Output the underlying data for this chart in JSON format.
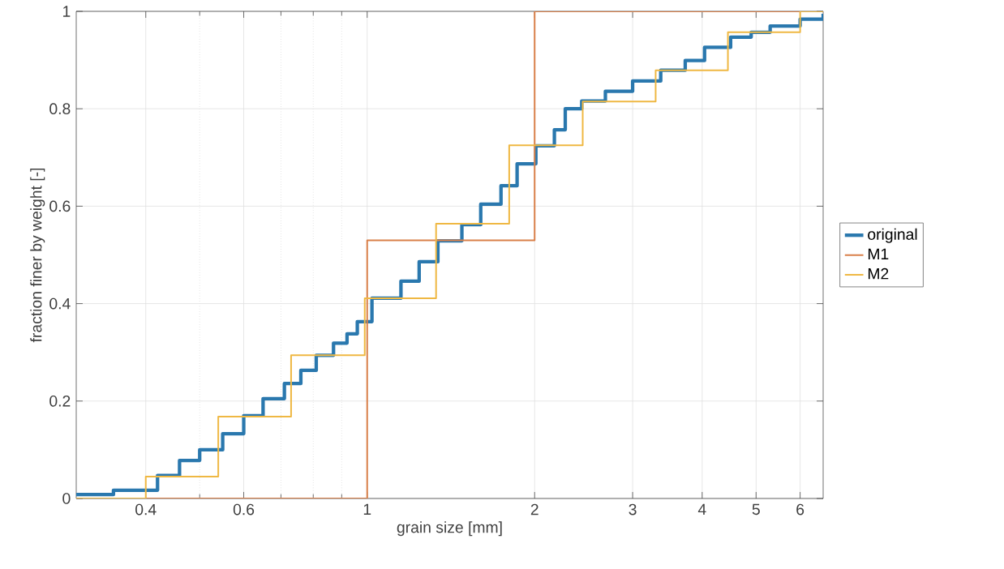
{
  "chart_data": {
    "type": "step",
    "xlabel": "grain size [mm]",
    "ylabel": "fraction finer by weight [-]",
    "log": "x",
    "grid": true,
    "legend": "right",
    "xlim": [
      0.3,
      6.6
    ],
    "ylim": [
      0,
      1
    ],
    "xticks": [
      0.4,
      {
        "value": 0.5,
        "label": null
      },
      0.6,
      {
        "value": 0.7,
        "label": null
      },
      {
        "value": 0.8,
        "label": null
      },
      {
        "value": 0.9,
        "label": null
      },
      1,
      2,
      3,
      4,
      5,
      6
    ],
    "yticks": [
      0,
      0.2,
      0.4,
      0.6,
      0.8,
      1
    ],
    "series": [
      {
        "name": "original",
        "color": "#2a78ae",
        "x": [
          0.3,
          0.35,
          0.42,
          0.46,
          0.5,
          0.55,
          0.6,
          0.65,
          0.71,
          0.76,
          0.81,
          0.87,
          0.92,
          0.96,
          1.02,
          1.15,
          1.24,
          1.34,
          1.48,
          1.6,
          1.74,
          1.86,
          2.01,
          2.17,
          2.27,
          2.43,
          2.68,
          3.0,
          3.37,
          3.73,
          4.04,
          4.5,
          4.9,
          5.3,
          6.0,
          6.6
        ],
        "values": [
          0.008,
          0.017,
          0.047,
          0.078,
          0.1,
          0.133,
          0.17,
          0.205,
          0.236,
          0.263,
          0.294,
          0.319,
          0.338,
          0.363,
          0.411,
          0.446,
          0.486,
          0.529,
          0.562,
          0.604,
          0.642,
          0.687,
          0.724,
          0.757,
          0.8,
          0.816,
          0.836,
          0.857,
          0.879,
          0.899,
          0.926,
          0.947,
          0.957,
          0.97,
          0.984,
          0.995
        ]
      },
      {
        "name": "M1",
        "color": "#d9804a",
        "x": [
          0.3,
          1,
          2,
          6.6
        ],
        "values": [
          0,
          0.53,
          1,
          1
        ]
      },
      {
        "name": "M2",
        "color": "#efb843",
        "x": [
          0.3,
          0.4,
          0.54,
          0.73,
          0.99,
          1.33,
          1.8,
          2.44,
          3.3,
          4.45,
          6.0,
          6.6
        ],
        "values": [
          0,
          0.045,
          0.168,
          0.294,
          0.411,
          0.564,
          0.725,
          0.815,
          0.879,
          0.957,
          1,
          1
        ]
      }
    ]
  }
}
